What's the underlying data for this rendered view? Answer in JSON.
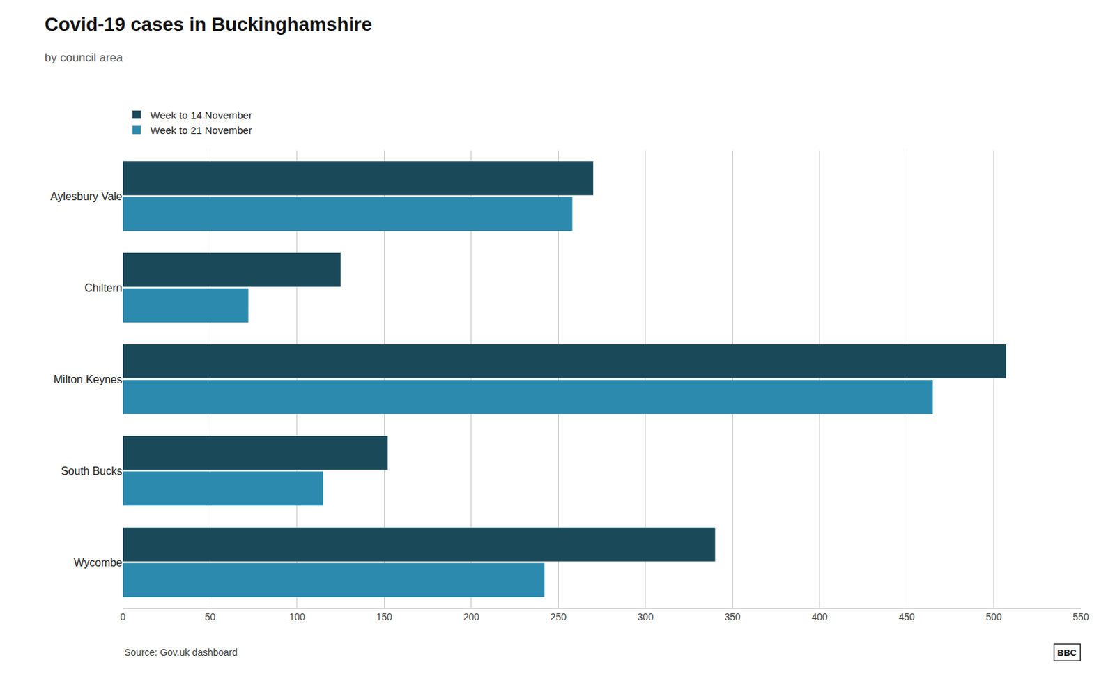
{
  "chart_data": {
    "type": "bar",
    "orientation": "horizontal",
    "title": "Covid-19 cases in Buckinghamshire",
    "subtitle": "by council area",
    "categories": [
      "Aylesbury Vale",
      "Chiltern",
      "Milton Keynes",
      "South Bucks",
      "Wycombe"
    ],
    "series": [
      {
        "name": "Week to 14 November",
        "color": "#1a4a5a",
        "values": [
          270,
          125,
          507,
          152,
          340
        ]
      },
      {
        "name": "Week to 21 November",
        "color": "#2b8aad",
        "values": [
          258,
          72,
          465,
          115,
          242
        ]
      }
    ],
    "xlim": [
      0,
      550
    ],
    "xticks": [
      0,
      50,
      100,
      150,
      200,
      250,
      300,
      350,
      400,
      450,
      500,
      550
    ],
    "grid": true,
    "legend": "upper left",
    "annotations": [
      "Source: Gov.uk dashboard",
      "BBC"
    ]
  }
}
